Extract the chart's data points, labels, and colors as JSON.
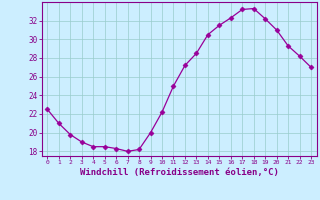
{
  "x": [
    0,
    1,
    2,
    3,
    4,
    5,
    6,
    7,
    8,
    9,
    10,
    11,
    12,
    13,
    14,
    15,
    16,
    17,
    18,
    19,
    20,
    21,
    22,
    23
  ],
  "y": [
    22.5,
    21.0,
    19.8,
    19.0,
    18.5,
    18.5,
    18.3,
    18.0,
    18.2,
    20.0,
    22.2,
    25.0,
    27.2,
    28.5,
    30.5,
    31.5,
    32.3,
    33.2,
    33.3,
    32.2,
    31.0,
    29.3,
    28.2,
    27.0
  ],
  "line_color": "#990099",
  "marker": "D",
  "marker_size": 2.5,
  "xlabel": "Windchill (Refroidissement éolien,°C)",
  "xlabel_fontsize": 6.5,
  "ylabel_ticks": [
    18,
    20,
    22,
    24,
    26,
    28,
    30,
    32
  ],
  "xlim": [
    -0.5,
    23.5
  ],
  "ylim": [
    17.5,
    34.0
  ],
  "background_color": "#cceeff",
  "grid_color": "#99cccc",
  "tick_color": "#880088",
  "spine_color": "#880088"
}
